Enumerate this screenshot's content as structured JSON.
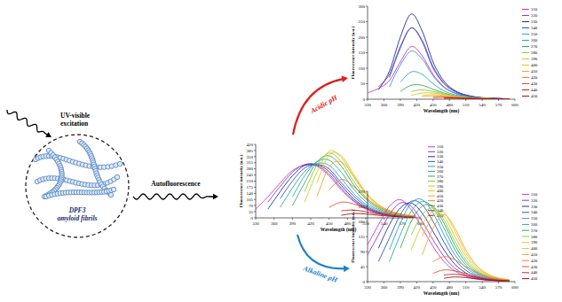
{
  "diagram": {
    "excitation_label": [
      "UV-visible",
      "excitation"
    ],
    "sample_label": [
      "DPF3",
      "amyloid fibrils"
    ],
    "emission_label": "Autofluorescence",
    "acidic_label": "Acidic pH",
    "alkaline_label": "Alkaline pH"
  },
  "chart_data": [
    {
      "type": "line",
      "x_label": "Wavelength (nm)",
      "y_label": "Fluorescence intensity (a.u.)",
      "x": [
        330,
        350,
        370,
        390,
        410,
        430,
        450,
        470,
        490,
        510,
        530,
        550,
        570,
        590
      ],
      "xlim": [
        330,
        600
      ],
      "xticks": [
        330,
        360,
        390,
        420,
        450,
        480,
        510,
        540,
        570,
        600
      ],
      "ylim": [
        0,
        420
      ],
      "yticks": [
        0,
        35,
        70,
        105,
        140,
        175,
        210,
        245,
        280,
        315,
        350,
        385,
        420
      ],
      "grid": false,
      "legend": "right",
      "series": [
        {
          "name": "310",
          "color": "#cc33cc",
          "values": [
            50,
            120,
            200,
            270,
            300,
            295,
            240,
            160,
            95,
            50,
            25,
            12,
            6,
            3
          ]
        },
        {
          "name": "320",
          "color": "#9933cc",
          "values": [
            null,
            90,
            180,
            260,
            305,
            300,
            250,
            170,
            100,
            55,
            28,
            14,
            7,
            3
          ]
        },
        {
          "name": "330",
          "color": "#1f2f8f",
          "values": [
            null,
            50,
            150,
            240,
            300,
            305,
            265,
            185,
            110,
            60,
            30,
            15,
            8,
            4
          ]
        },
        {
          "name": "340",
          "color": "#2255cc",
          "values": [
            null,
            null,
            110,
            210,
            285,
            305,
            280,
            200,
            125,
            68,
            35,
            17,
            9,
            4
          ]
        },
        {
          "name": "350",
          "color": "#3399cc",
          "values": [
            null,
            null,
            60,
            170,
            265,
            310,
            300,
            225,
            140,
            78,
            40,
            20,
            10,
            5
          ]
        },
        {
          "name": "360",
          "color": "#22aaaa",
          "values": [
            null,
            null,
            null,
            120,
            240,
            320,
            330,
            260,
            165,
            92,
            47,
            23,
            12,
            6
          ]
        },
        {
          "name": "370",
          "color": "#33aa55",
          "values": [
            null,
            null,
            null,
            70,
            200,
            320,
            355,
            295,
            190,
            108,
            55,
            27,
            14,
            7
          ]
        },
        {
          "name": "380",
          "color": "#88cc33",
          "values": [
            null,
            null,
            null,
            null,
            150,
            300,
            370,
            320,
            210,
            120,
            62,
            30,
            15,
            8
          ]
        },
        {
          "name": "390",
          "color": "#cccc22",
          "values": [
            null,
            null,
            null,
            null,
            90,
            260,
            380,
            345,
            235,
            135,
            70,
            34,
            17,
            9
          ]
        },
        {
          "name": "400",
          "color": "#f0c020",
          "values": [
            null,
            null,
            null,
            null,
            null,
            200,
            360,
            355,
            250,
            145,
            76,
            38,
            19,
            10
          ]
        },
        {
          "name": "410",
          "color": "#f5a623",
          "values": [
            null,
            null,
            null,
            null,
            null,
            120,
            290,
            320,
            240,
            145,
            78,
            40,
            20,
            10
          ]
        },
        {
          "name": "420",
          "color": "#f08030",
          "values": [
            null,
            null,
            null,
            null,
            null,
            null,
            160,
            220,
            180,
            115,
            65,
            35,
            18,
            9
          ]
        },
        {
          "name": "430",
          "color": "#e05030",
          "values": [
            null,
            null,
            null,
            null,
            null,
            null,
            60,
            90,
            80,
            55,
            33,
            18,
            10,
            5
          ]
        },
        {
          "name": "440",
          "color": "#d02020",
          "values": [
            null,
            null,
            null,
            null,
            null,
            null,
            null,
            40,
            45,
            35,
            22,
            13,
            7,
            4
          ]
        },
        {
          "name": "450",
          "color": "#a01010",
          "values": [
            null,
            null,
            null,
            null,
            null,
            null,
            null,
            15,
            25,
            22,
            15,
            9,
            5,
            3
          ]
        }
      ]
    },
    {
      "type": "line",
      "x_label": "Wavelength (nm)",
      "y_label": "Fluorescence intensity (a.u.)",
      "x": [
        330,
        350,
        370,
        390,
        410,
        430,
        450,
        470,
        490,
        510,
        530,
        550,
        570,
        590
      ],
      "xlim": [
        330,
        600
      ],
      "xticks": [
        330,
        360,
        390,
        420,
        450,
        480,
        510,
        540,
        570,
        600
      ],
      "ylim": [
        0,
        300
      ],
      "yticks": [
        0,
        50,
        100,
        150,
        200,
        250,
        300
      ],
      "grid": false,
      "legend": "right",
      "series": [
        {
          "name": "310",
          "color": "#cc33cc",
          "values": [
            20,
            35,
            60,
            120,
            170,
            140,
            80,
            40,
            20,
            10,
            5,
            3,
            2,
            1
          ]
        },
        {
          "name": "320",
          "color": "#9933cc",
          "values": [
            null,
            40,
            80,
            170,
            230,
            185,
            100,
            50,
            25,
            12,
            6,
            3,
            2,
            1
          ]
        },
        {
          "name": "330",
          "color": "#1f2f8f",
          "values": [
            null,
            30,
            90,
            200,
            275,
            220,
            120,
            58,
            28,
            14,
            7,
            4,
            2,
            1
          ]
        },
        {
          "name": "340",
          "color": "#2255cc",
          "values": [
            null,
            null,
            70,
            165,
            230,
            190,
            105,
            52,
            25,
            12,
            6,
            3,
            2,
            1
          ]
        },
        {
          "name": "350",
          "color": "#3399cc",
          "values": [
            null,
            null,
            40,
            110,
            155,
            130,
            75,
            38,
            19,
            10,
            5,
            3,
            2,
            1
          ]
        },
        {
          "name": "360",
          "color": "#22aaaa",
          "values": [
            null,
            null,
            null,
            55,
            88,
            80,
            50,
            27,
            14,
            8,
            4,
            2,
            1,
            1
          ]
        },
        {
          "name": "370",
          "color": "#33aa55",
          "values": [
            null,
            null,
            null,
            25,
            45,
            45,
            32,
            20,
            11,
            6,
            3,
            2,
            1,
            1
          ]
        },
        {
          "name": "380",
          "color": "#88cc33",
          "values": [
            null,
            null,
            null,
            null,
            25,
            30,
            25,
            17,
            10,
            6,
            3,
            2,
            1,
            1
          ]
        },
        {
          "name": "390",
          "color": "#cccc22",
          "values": [
            null,
            null,
            null,
            null,
            12,
            20,
            20,
            15,
            9,
            5,
            3,
            2,
            1,
            1
          ]
        },
        {
          "name": "400",
          "color": "#f0c020",
          "values": [
            null,
            null,
            null,
            null,
            null,
            12,
            15,
            12,
            8,
            5,
            3,
            2,
            1,
            1
          ]
        },
        {
          "name": "410",
          "color": "#f5a623",
          "values": [
            null,
            null,
            null,
            null,
            null,
            8,
            11,
            10,
            7,
            4,
            3,
            2,
            1,
            1
          ]
        },
        {
          "name": "420",
          "color": "#f08030",
          "values": [
            null,
            null,
            null,
            null,
            null,
            null,
            8,
            8,
            6,
            4,
            2,
            2,
            1,
            1
          ]
        },
        {
          "name": "430",
          "color": "#e05030",
          "values": [
            null,
            null,
            null,
            null,
            null,
            null,
            5,
            6,
            5,
            3,
            2,
            1,
            1,
            1
          ]
        },
        {
          "name": "440",
          "color": "#d02020",
          "values": [
            null,
            null,
            null,
            null,
            null,
            null,
            null,
            4,
            4,
            3,
            2,
            1,
            1,
            1
          ]
        },
        {
          "name": "450",
          "color": "#a01010",
          "values": [
            null,
            null,
            null,
            null,
            null,
            null,
            null,
            3,
            3,
            2,
            2,
            1,
            1,
            1
          ]
        }
      ]
    },
    {
      "type": "line",
      "x_label": "Wavelength (nm)",
      "y_label": "Fluorescence intensity (a.u.)",
      "x": [
        330,
        350,
        370,
        390,
        410,
        430,
        450,
        470,
        490,
        510,
        530,
        550,
        570,
        590
      ],
      "xlim": [
        330,
        600
      ],
      "xticks": [
        330,
        360,
        390,
        420,
        450,
        480,
        510,
        540,
        570,
        600
      ],
      "ylim": [
        0,
        270
      ],
      "yticks": [
        0,
        45,
        90,
        135,
        180,
        225,
        270
      ],
      "grid": false,
      "legend": "right",
      "series": [
        {
          "name": "310",
          "color": "#cc33cc",
          "values": [
            110,
            170,
            225,
            245,
            215,
            160,
            105,
            60,
            32,
            16,
            8,
            4,
            2,
            1
          ]
        },
        {
          "name": "320",
          "color": "#9933cc",
          "values": [
            80,
            140,
            200,
            235,
            225,
            180,
            125,
            75,
            40,
            20,
            10,
            5,
            3,
            1
          ]
        },
        {
          "name": "330",
          "color": "#1f2f8f",
          "values": [
            null,
            100,
            170,
            220,
            235,
            205,
            150,
            95,
            52,
            26,
            13,
            6,
            3,
            2
          ]
        },
        {
          "name": "340",
          "color": "#2255cc",
          "values": [
            null,
            60,
            130,
            200,
            240,
            230,
            180,
            118,
            66,
            34,
            17,
            8,
            4,
            2
          ]
        },
        {
          "name": "350",
          "color": "#3399cc",
          "values": [
            null,
            null,
            95,
            175,
            235,
            245,
            205,
            140,
            80,
            42,
            21,
            10,
            5,
            2
          ]
        },
        {
          "name": "360",
          "color": "#22aaaa",
          "values": [
            null,
            null,
            60,
            140,
            210,
            240,
            220,
            160,
            95,
            50,
            25,
            12,
            6,
            3
          ]
        },
        {
          "name": "370",
          "color": "#33aa55",
          "values": [
            null,
            null,
            null,
            100,
            180,
            225,
            225,
            175,
            108,
            58,
            29,
            14,
            7,
            3
          ]
        },
        {
          "name": "380",
          "color": "#88cc33",
          "values": [
            null,
            null,
            null,
            null,
            140,
            200,
            220,
            185,
            120,
            66,
            33,
            16,
            8,
            4
          ]
        },
        {
          "name": "390",
          "color": "#cccc22",
          "values": [
            null,
            null,
            null,
            null,
            95,
            170,
            210,
            195,
            135,
            76,
            38,
            18,
            9,
            4
          ]
        },
        {
          "name": "400",
          "color": "#f0c020",
          "values": [
            null,
            null,
            null,
            null,
            null,
            135,
            195,
            205,
            150,
            86,
            43,
            21,
            10,
            5
          ]
        },
        {
          "name": "410",
          "color": "#f5a623",
          "values": [
            null,
            null,
            null,
            null,
            null,
            80,
            160,
            200,
            160,
            95,
            48,
            23,
            11,
            5
          ]
        },
        {
          "name": "420",
          "color": "#f08030",
          "values": [
            null,
            null,
            null,
            null,
            null,
            null,
            60,
            75,
            65,
            45,
            27,
            15,
            8,
            4
          ]
        },
        {
          "name": "430",
          "color": "#e05030",
          "values": [
            null,
            null,
            null,
            null,
            null,
            null,
            25,
            35,
            32,
            24,
            15,
            9,
            5,
            3
          ]
        },
        {
          "name": "440",
          "color": "#d02020",
          "values": [
            null,
            null,
            null,
            null,
            null,
            null,
            null,
            20,
            22,
            18,
            12,
            7,
            4,
            2
          ]
        },
        {
          "name": "450",
          "color": "#a01010",
          "values": [
            null,
            null,
            null,
            null,
            null,
            null,
            null,
            10,
            14,
            12,
            8,
            5,
            3,
            2
          ]
        }
      ]
    }
  ]
}
